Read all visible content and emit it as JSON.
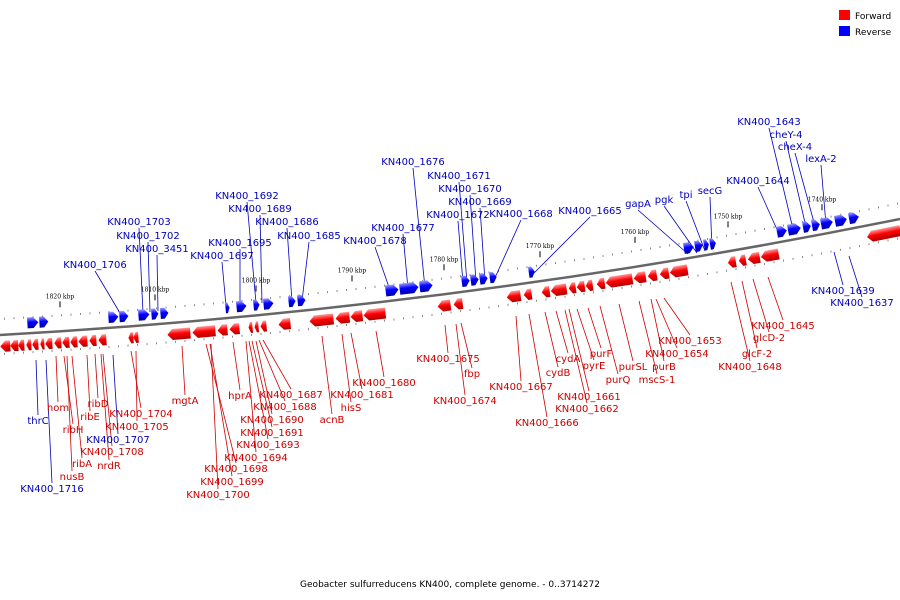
{
  "caption": "Geobacter sulfurreducens KN400, complete genome. - 0..3714272",
  "legend": {
    "forward": {
      "label": "Forward",
      "color": "#ff0000"
    },
    "reverse": {
      "label": "Reverse",
      "color": "#0000ff"
    }
  },
  "ticks": [
    "1820 kbp",
    "1810 kbp",
    "1800 kbp",
    "1790 kbp",
    "1780 kbp",
    "1770 kbp",
    "1760 kbp",
    "1750 kbp",
    "1740 kbp"
  ],
  "reverse_labels": [
    "KN400_1706",
    "KN400_1703",
    "KN400_1702",
    "KN400_3451",
    "KN400_1697",
    "KN400_1695",
    "KN400_1692",
    "KN400_1689",
    "KN400_1686",
    "KN400_1685",
    "KN400_1678",
    "KN400_1677",
    "KN400_1676",
    "KN400_1671",
    "KN400_1670",
    "KN400_1669",
    "KN400_1672",
    "KN400_1668",
    "KN400_1665",
    "gapA",
    "pgk",
    "tpi",
    "secG",
    "KN400_1644",
    "KN400_1643",
    "cheY-4",
    "cheX-4",
    "lexA-2",
    "thrC",
    "KN400_1716",
    "KN400_1707",
    "KN400_1639",
    "KN400_1637"
  ],
  "forward_labels": [
    "hom",
    "ribH",
    "ribE",
    "ribD",
    "ribA",
    "nusB",
    "nrdR",
    "KN400_1708",
    "KN400_1704",
    "KN400_1705",
    "mgtA",
    "KN400_1698",
    "KN400_1699",
    "KN400_1700",
    "hprA",
    "KN400_1687",
    "KN400_1688",
    "KN400_1690",
    "KN400_1691",
    "KN400_1693",
    "KN400_1694",
    "acnB",
    "hisS",
    "KN400_1681",
    "KN400_1680",
    "KN400_1675",
    "fbp",
    "KN400_1674",
    "KN400_1667",
    "KN400_1666",
    "cydA",
    "cydB",
    "pyrE",
    "purF",
    "purQ",
    "purSL",
    "KN400_1661",
    "KN400_1662",
    "mscS-1",
    "purB",
    "KN400_1654",
    "KN400_1653",
    "KN400_1648",
    "glcF-2",
    "glcD-2",
    "KN400_1645"
  ]
}
